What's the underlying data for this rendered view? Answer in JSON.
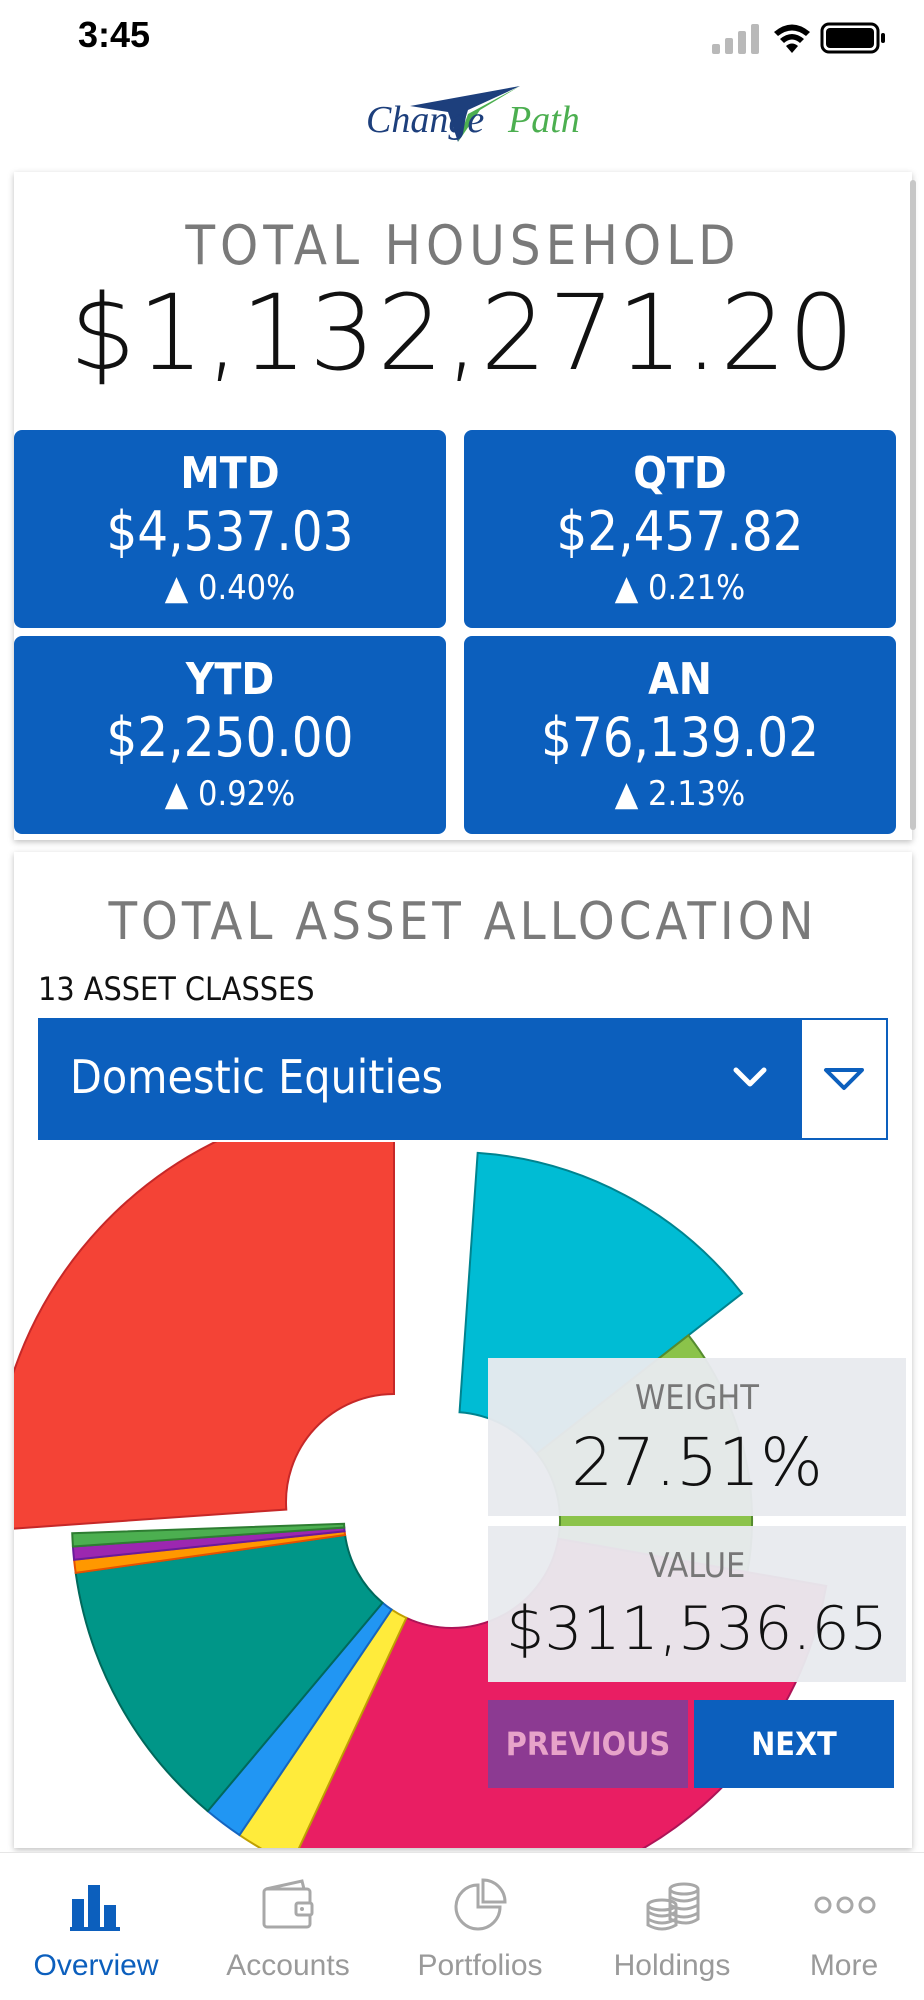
{
  "status_bar": {
    "time": "3:45"
  },
  "logo": {
    "part1": "Change",
    "part2": "Path"
  },
  "household": {
    "title": "TOTAL HOUSEHOLD",
    "amount": "$1,132,271.20"
  },
  "stats": [
    {
      "label": "MTD",
      "value": "$4,537.03",
      "change": "▲ 0.40%"
    },
    {
      "label": "QTD",
      "value": "$2,457.82",
      "change": "▲ 0.21%"
    },
    {
      "label": "YTD",
      "value": "$2,250.00",
      "change": "▲ 0.92%"
    },
    {
      "label": "AN",
      "value": "$76,139.02",
      "change": "▲ 2.13%"
    }
  ],
  "allocation": {
    "title": "TOTAL ASSET ALLOCATION",
    "count_label": "13 ASSET CLASSES",
    "selected": "Domestic Equities",
    "weight_label": "WEIGHT",
    "weight_value": "27.51%",
    "value_label": "VALUE",
    "value_amount": "$311,536.65",
    "previous_label": "PREVIOUS",
    "next_label": "NEXT"
  },
  "colors": {
    "primary_blue": "#0c5fbd",
    "selected_slice": "#f44336",
    "cyan": "#00bcd4",
    "green": "#8bc34a",
    "pink": "#e91e63",
    "teal": "#009688",
    "yellow": "#ffeb3b",
    "light_blue": "#2196f3",
    "orange": "#ff9800",
    "purple": "#9c27b0",
    "dark_green": "#4caf50"
  },
  "tabs": [
    {
      "label": "Overview",
      "icon": "bar-chart-icon",
      "active": true
    },
    {
      "label": "Accounts",
      "icon": "wallet-icon",
      "active": false
    },
    {
      "label": "Portfolios",
      "icon": "pie-chart-icon",
      "active": false
    },
    {
      "label": "Holdings",
      "icon": "coins-icon",
      "active": false
    },
    {
      "label": "More",
      "icon": "more-dots-icon",
      "active": false
    }
  ]
}
